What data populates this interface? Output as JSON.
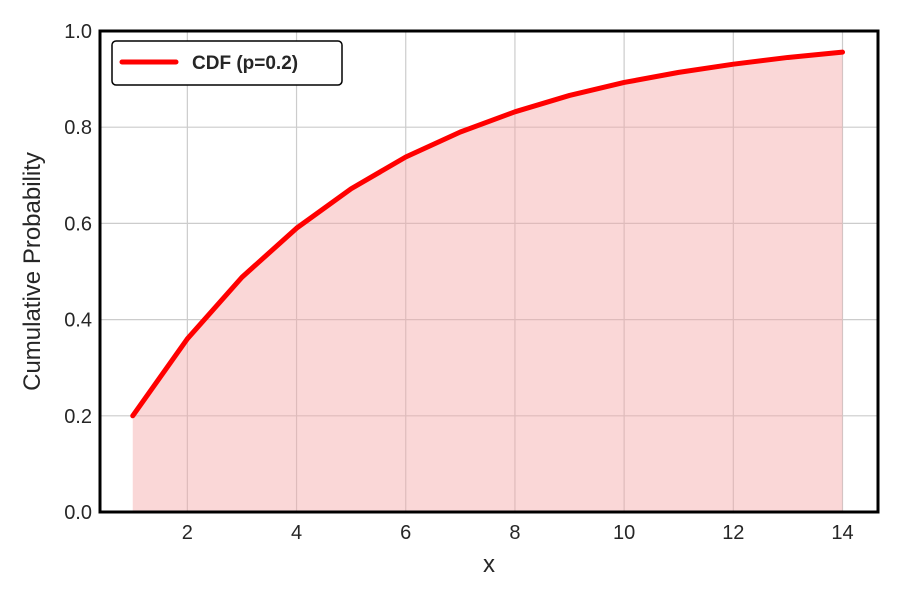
{
  "chart_data": {
    "type": "area",
    "title": "",
    "xlabel": "x",
    "ylabel": "Cumulative Probability",
    "xlim": [
      0.4,
      14.65
    ],
    "ylim": [
      0,
      1
    ],
    "xticks": [
      2,
      4,
      6,
      8,
      10,
      12,
      14
    ],
    "yticks": [
      0.0,
      0.2,
      0.4,
      0.6,
      0.8,
      1.0
    ],
    "xtick_labels": [
      "2",
      "4",
      "6",
      "8",
      "10",
      "12",
      "14"
    ],
    "ytick_labels": [
      "0.0",
      "0.2",
      "0.4",
      "0.6",
      "0.8",
      "1.0"
    ],
    "grid": true,
    "legend_position": "top-left",
    "series": [
      {
        "name": "CDF (p=0.2)",
        "color": "#ff0000",
        "fill_color": "#f4a6a6",
        "x": [
          1,
          2,
          3,
          4,
          5,
          6,
          7,
          8,
          9,
          10,
          11,
          12,
          13,
          14
        ],
        "y": [
          0.2,
          0.36,
          0.488,
          0.59,
          0.672,
          0.738,
          0.79,
          0.832,
          0.866,
          0.893,
          0.914,
          0.931,
          0.945,
          0.956
        ]
      }
    ]
  }
}
